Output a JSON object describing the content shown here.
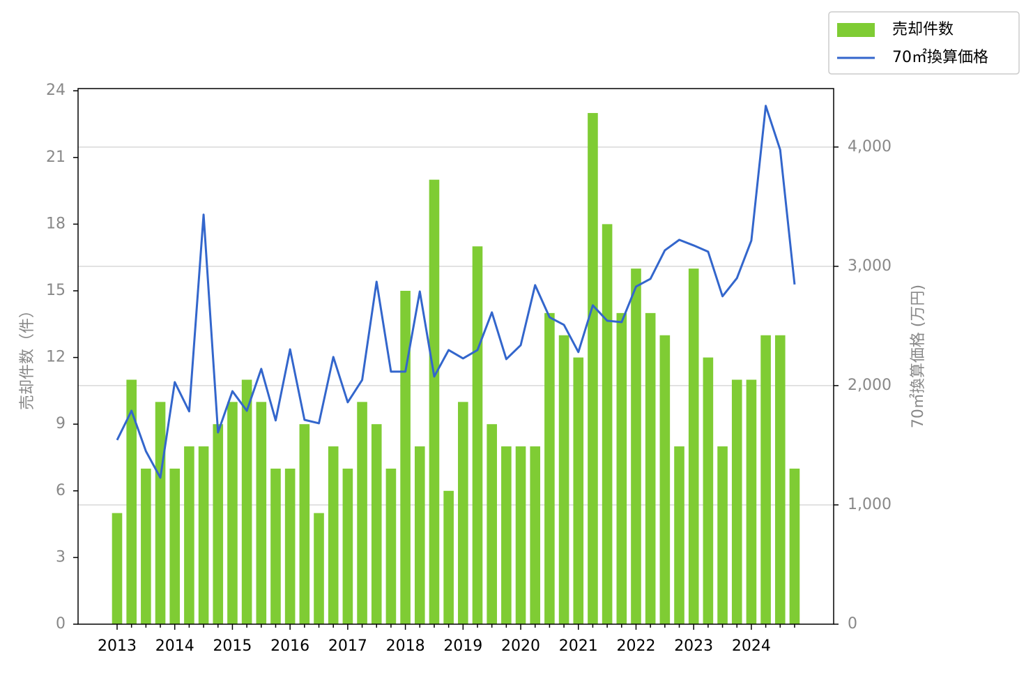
{
  "chart_data": {
    "type": "combo",
    "ylabel": "売却件数（件）",
    "y2label": "70㎡換算価格 (万円)",
    "categories": [
      "2013",
      null,
      null,
      null,
      "2014",
      null,
      null,
      null,
      "2015",
      null,
      null,
      null,
      "2016",
      null,
      null,
      null,
      "2017",
      null,
      null,
      null,
      "2018",
      null,
      null,
      null,
      "2019",
      null,
      null,
      null,
      "2020",
      null,
      null,
      null,
      "2021",
      null,
      null,
      null,
      "2022",
      null,
      null,
      null,
      "2023",
      null,
      null,
      null,
      "2024",
      null,
      null,
      null
    ],
    "series": [
      {
        "name": "売却件数",
        "type": "bar",
        "color": "#7fcc34",
        "values": [
          5,
          11,
          7,
          10,
          7,
          8,
          8,
          9,
          10,
          11,
          10,
          7,
          7,
          9,
          5,
          8,
          7,
          10,
          9,
          7,
          15,
          8,
          20,
          6,
          10,
          17,
          9,
          8,
          8,
          8,
          14,
          13,
          12,
          23,
          18,
          14,
          16,
          14,
          13,
          8,
          16,
          12,
          8,
          11,
          11,
          13,
          13,
          7
        ]
      },
      {
        "name": "70㎡換算価格",
        "type": "line",
        "axis": "y2",
        "color": "#3366cc",
        "values": [
          1544,
          1789,
          1450,
          1228,
          2029,
          1784,
          3433,
          1608,
          1953,
          1789,
          2140,
          1708,
          2304,
          1713,
          1684,
          2240,
          1860,
          2047,
          2871,
          2117,
          2117,
          2789,
          2076,
          2298,
          2228,
          2298,
          2614,
          2222,
          2339,
          2842,
          2573,
          2509,
          2281,
          2673,
          2544,
          2532,
          2830,
          2895,
          3134,
          3222,
          3175,
          3123,
          2749,
          2901,
          3216,
          4345,
          3977,
          2848
        ]
      }
    ],
    "ylim": [
      0,
      24.1
    ],
    "yticks": [
      0,
      3,
      6,
      9,
      12,
      15,
      18,
      21,
      24
    ],
    "y2lim": [
      0,
      4490
    ],
    "y2ticks": [
      0,
      {
        "value": 1000,
        "label": "1,000"
      },
      {
        "value": 2000,
        "label": "2,000"
      },
      {
        "value": 3000,
        "label": "3,000"
      },
      {
        "value": 4000,
        "label": "4,000"
      }
    ],
    "grid": "y2",
    "legend": "top-right-outside"
  }
}
